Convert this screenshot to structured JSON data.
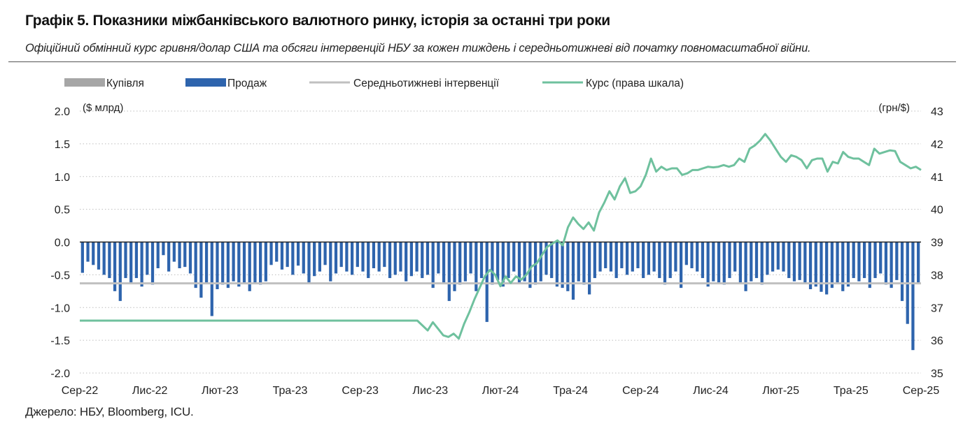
{
  "title": "Графік 5. Показники міжбанківського валютного ринку, історія за останні три роки",
  "subtitle": "Офіційний обмінний курс гривня/долар США та обсяги інтервенцій НБУ за кожен тиждень і середньотижневі від початку повномасштабної війни.",
  "source": "Джерело: НБУ, Bloomberg, ICU.",
  "chart_data": {
    "type": "bar",
    "legend": [
      "Купівля",
      "Продаж",
      "Середньотижневі інтервенції",
      "Курс (права шкала)"
    ],
    "colors": {
      "purchase": "#a6a6a6",
      "sale": "#2e64ad",
      "avg": "#c0c0c0",
      "rate": "#6fc19e"
    },
    "left_axis": {
      "unit": "($ млрд)",
      "ylim": [
        -2.0,
        2.0
      ],
      "ticks": [
        "2.0",
        "1.5",
        "1.0",
        "0.5",
        "0.0",
        "-0.5",
        "-1.0",
        "-1.5",
        "-2.0"
      ]
    },
    "right_axis": {
      "unit": "(грн/$)",
      "ylim": [
        35,
        43
      ],
      "ticks": [
        "43",
        "42",
        "41",
        "40",
        "39",
        "38",
        "37",
        "36",
        "35"
      ]
    },
    "x_tick_labels": [
      "Сер-22",
      "Лис-22",
      "Лют-23",
      "Тра-23",
      "Сер-23",
      "Лис-23",
      "Лют-24",
      "Тра-24",
      "Сер-24",
      "Лис-24",
      "Лют-25",
      "Тра-25",
      "Сер-25"
    ],
    "average_intervention": -0.63,
    "purchases": [
      0,
      0,
      0,
      0,
      0,
      0,
      0,
      0,
      0,
      0,
      0,
      0,
      0,
      0,
      0,
      0,
      0,
      0,
      0,
      0,
      0,
      0,
      0,
      0,
      0,
      0,
      0,
      0,
      0,
      0,
      0,
      0,
      0,
      0,
      0,
      0,
      0,
      0,
      0,
      0,
      0,
      0,
      0,
      0,
      0,
      0,
      0,
      0,
      0,
      0,
      0,
      0,
      0,
      0,
      0,
      0,
      0,
      0,
      0,
      0,
      0,
      0,
      0,
      0,
      0,
      0,
      0,
      0,
      0,
      0,
      0,
      0,
      0,
      0,
      0,
      0,
      0,
      0,
      0,
      0,
      0,
      0,
      0,
      0,
      0,
      0,
      0,
      0,
      0,
      0,
      0,
      0,
      0,
      0,
      0,
      0,
      0,
      0,
      0,
      0,
      0,
      0,
      0,
      0,
      0,
      0,
      0,
      0,
      0,
      0,
      0,
      0,
      0,
      0,
      0,
      0,
      0,
      0,
      0,
      0,
      0,
      0,
      0,
      0,
      0,
      0,
      0,
      0,
      0,
      0,
      0,
      0,
      0,
      0,
      0,
      0,
      0,
      0,
      0,
      0,
      0,
      0,
      0,
      0,
      0,
      0,
      0,
      0,
      0,
      0,
      0,
      0,
      0,
      0,
      0,
      0,
      0,
      0
    ],
    "sales": [
      -0.47,
      -0.3,
      -0.35,
      -0.42,
      -0.5,
      -0.55,
      -0.75,
      -0.9,
      -0.55,
      -0.62,
      -0.55,
      -0.68,
      -0.5,
      -0.65,
      -0.4,
      -0.2,
      -0.45,
      -0.3,
      -0.4,
      -0.38,
      -0.48,
      -0.7,
      -0.85,
      -0.62,
      -1.13,
      -0.72,
      -0.65,
      -0.7,
      -0.6,
      -0.68,
      -0.62,
      -0.75,
      -0.62,
      -0.65,
      -0.6,
      -0.35,
      -0.3,
      -0.42,
      -0.38,
      -0.5,
      -0.36,
      -0.48,
      -0.62,
      -0.52,
      -0.45,
      -0.35,
      -0.6,
      -0.48,
      -0.38,
      -0.45,
      -0.5,
      -0.38,
      -0.45,
      -0.55,
      -0.4,
      -0.45,
      -0.38,
      -0.55,
      -0.5,
      -0.45,
      -0.6,
      -0.52,
      -0.45,
      -0.55,
      -0.5,
      -0.7,
      -0.48,
      -0.62,
      -0.9,
      -0.75,
      -0.65,
      -0.6,
      -0.48,
      -0.75,
      -0.55,
      -1.22,
      -0.65,
      -0.58,
      -0.68,
      -0.55,
      -0.45,
      -0.62,
      -0.6,
      -0.7,
      -0.65,
      -0.6,
      -0.5,
      -0.55,
      -0.68,
      -0.7,
      -0.75,
      -0.88,
      -0.6,
      -0.65,
      -0.8,
      -0.55,
      -0.45,
      -0.4,
      -0.45,
      -0.55,
      -0.4,
      -0.5,
      -0.45,
      -0.4,
      -0.55,
      -0.5,
      -0.45,
      -0.55,
      -0.65,
      -0.55,
      -0.45,
      -0.7,
      -0.35,
      -0.4,
      -0.45,
      -0.55,
      -0.68,
      -0.6,
      -0.62,
      -0.65,
      -0.55,
      -0.45,
      -0.62,
      -0.75,
      -0.6,
      -0.55,
      -0.65,
      -0.5,
      -0.45,
      -0.42,
      -0.45,
      -0.55,
      -0.6,
      -0.58,
      -0.62,
      -0.72,
      -0.68,
      -0.76,
      -0.8,
      -0.7,
      -0.62,
      -0.75,
      -0.68,
      -0.55,
      -0.6,
      -0.55,
      -0.7,
      -0.55,
      -0.48,
      -0.65,
      -0.7,
      -0.58,
      -0.9,
      -1.25,
      -1.65,
      -0.62
    ],
    "rate": [
      36.6,
      36.6,
      36.6,
      36.6,
      36.6,
      36.6,
      36.6,
      36.6,
      36.6,
      36.6,
      36.6,
      36.6,
      36.6,
      36.6,
      36.6,
      36.6,
      36.6,
      36.6,
      36.6,
      36.6,
      36.6,
      36.6,
      36.6,
      36.6,
      36.6,
      36.6,
      36.6,
      36.6,
      36.6,
      36.6,
      36.6,
      36.6,
      36.6,
      36.6,
      36.6,
      36.6,
      36.6,
      36.6,
      36.6,
      36.6,
      36.6,
      36.6,
      36.6,
      36.6,
      36.6,
      36.6,
      36.6,
      36.6,
      36.6,
      36.6,
      36.6,
      36.6,
      36.6,
      36.6,
      36.6,
      36.6,
      36.6,
      36.6,
      36.6,
      36.6,
      36.6,
      36.6,
      36.6,
      36.6,
      36.6,
      36.6,
      36.45,
      36.3,
      36.55,
      36.35,
      36.15,
      36.1,
      36.2,
      36.05,
      36.5,
      36.85,
      37.25,
      37.6,
      37.95,
      38.15,
      38.0,
      37.65,
      37.95,
      37.75,
      37.95,
      37.85,
      38.0,
      38.25,
      38.35,
      38.6,
      38.85,
      38.95,
      39.05,
      38.9,
      39.45,
      39.75,
      39.55,
      39.4,
      39.6,
      39.35,
      39.9,
      40.2,
      40.55,
      40.3,
      40.7,
      40.95,
      40.5,
      40.55,
      40.7,
      41.05,
      41.55,
      41.15,
      41.3,
      41.2,
      41.25,
      41.25,
      41.05,
      41.1,
      41.2,
      41.2,
      41.25,
      41.3,
      41.28,
      41.3,
      41.35,
      41.3,
      41.35,
      41.55,
      41.45,
      41.85,
      41.95,
      42.1,
      42.3,
      42.1,
      41.85,
      41.6,
      41.45,
      41.65,
      41.6,
      41.5,
      41.25,
      41.5,
      41.55,
      41.55,
      41.15,
      41.45,
      41.4,
      41.75,
      41.6,
      41.55,
      41.55,
      41.45,
      41.35,
      41.85,
      41.7,
      41.75,
      41.8,
      41.78,
      41.45,
      41.35,
      41.25,
      41.3,
      41.2
    ]
  }
}
